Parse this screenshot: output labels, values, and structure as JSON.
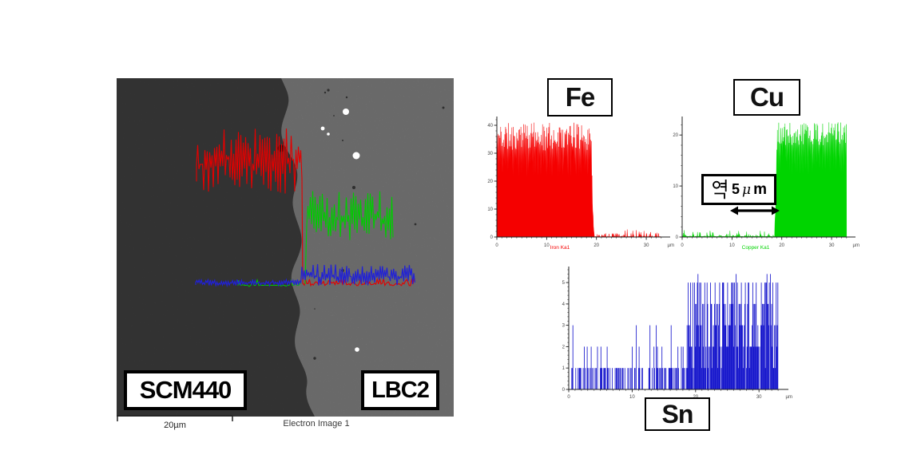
{
  "figure": {
    "background": "#ffffff"
  },
  "sem_image": {
    "label_left": "SCM440",
    "label_right": "LBC2",
    "scale_bar_label": "20µm",
    "caption": "Electron Image 1",
    "region_colors": {
      "dark_left": "#4a4a4a",
      "light_right": "#9c9c9c"
    },
    "overlay_line_colors": {
      "fe": "#e40000",
      "cu": "#00cc00",
      "sn": "#2121d6"
    }
  },
  "annotation": {
    "text": "약 5μm",
    "korean_prefix": "약",
    "value": "5",
    "unit_mu": "μ",
    "unit_m": "m"
  },
  "chart_data": [
    {
      "id": "fe",
      "type": "area",
      "title": "Fe",
      "series_label": "Iron Ka1",
      "color": "#f50000",
      "x_unit": "µm",
      "xlim": [
        0,
        34
      ],
      "ylim": [
        0,
        42
      ],
      "x_ticks": [
        0,
        10,
        20,
        30
      ],
      "y_ticks": [
        0,
        10,
        20,
        30,
        40
      ],
      "grid": false,
      "profile": {
        "transition_x": 19.2,
        "before": {
          "y_mean": 31,
          "y_min": 21,
          "y_max": 41,
          "density": 1.0
        },
        "after": {
          "y_mean": 0.5,
          "y_min": 0,
          "y_max": 3,
          "density": 0.5
        }
      }
    },
    {
      "id": "cu",
      "type": "area",
      "title": "Cu",
      "series_label": "Copper Ka1",
      "color": "#00d400",
      "x_unit": "µm",
      "xlim": [
        0,
        34
      ],
      "ylim": [
        0,
        23
      ],
      "x_ticks": [
        0,
        10,
        20,
        30
      ],
      "y_ticks": [
        0,
        10,
        20
      ],
      "grid": false,
      "profile": {
        "transition_x": 18.8,
        "before": {
          "y_mean": 0.3,
          "y_min": 0,
          "y_max": 1.6,
          "density": 0.3
        },
        "after": {
          "y_mean": 18,
          "y_min": 12,
          "y_max": 22.5,
          "density": 1.0
        }
      }
    },
    {
      "id": "sn",
      "type": "bar",
      "title": "Sn",
      "series_label": "",
      "color": "#1717cc",
      "x_unit": "µm",
      "xlim": [
        0,
        34
      ],
      "ylim": [
        0,
        5.6
      ],
      "x_ticks": [
        0,
        10,
        20,
        30
      ],
      "y_ticks": [
        0,
        1,
        2,
        3,
        4,
        5
      ],
      "grid": false,
      "profile": {
        "transition_x": 18.6,
        "before": {
          "density": 0.42,
          "heights": [
            1,
            2,
            3
          ],
          "height_weights": [
            0.8,
            0.15,
            0.05
          ]
        },
        "after": {
          "density": 0.95,
          "height_min": 1,
          "height_max": 5
        }
      }
    }
  ]
}
